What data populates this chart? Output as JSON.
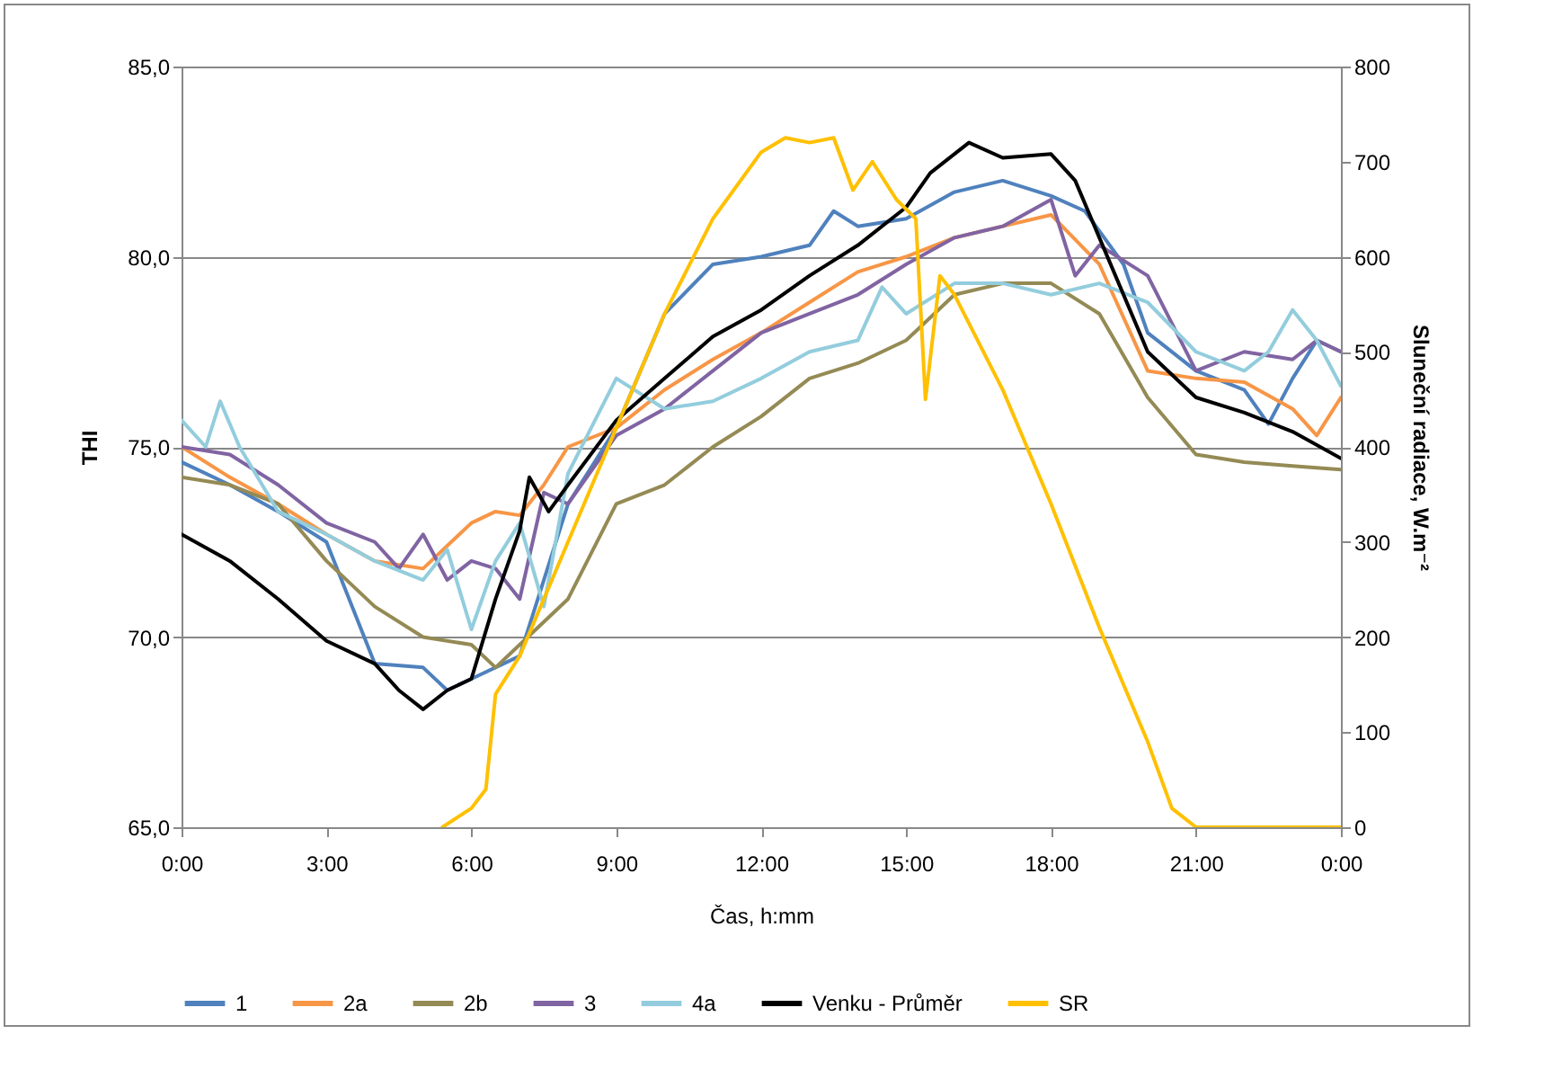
{
  "chart_data": {
    "type": "line",
    "xlabel": "Čas, h:mm",
    "ylabel": "THI",
    "y2label": "Sluneční radiace, W.m⁻²",
    "xlim": [
      0,
      24
    ],
    "xticks": [
      {
        "value": 0,
        "label": "0:00"
      },
      {
        "value": 3,
        "label": "3:00"
      },
      {
        "value": 6,
        "label": "6:00"
      },
      {
        "value": 9,
        "label": "9:00"
      },
      {
        "value": 12,
        "label": "12:00"
      },
      {
        "value": 15,
        "label": "15:00"
      },
      {
        "value": 18,
        "label": "18:00"
      },
      {
        "value": 21,
        "label": "21:00"
      },
      {
        "value": 24,
        "label": "0:00"
      }
    ],
    "ylim": [
      65,
      85
    ],
    "yticks": [
      {
        "value": 65,
        "label": "65,0"
      },
      {
        "value": 70,
        "label": "70,0"
      },
      {
        "value": 75,
        "label": "75,0"
      },
      {
        "value": 80,
        "label": "80,0"
      },
      {
        "value": 85,
        "label": "85,0"
      }
    ],
    "y2lim": [
      0,
      800
    ],
    "y2ticks": [
      0,
      100,
      200,
      300,
      400,
      500,
      600,
      700,
      800
    ],
    "grid": "y",
    "legend": "bottom",
    "marker": "none",
    "line_style": "solid",
    "series": [
      {
        "name": "1",
        "color": "#4f81bd",
        "x": [
          0,
          1,
          2,
          3,
          4,
          5,
          5.5,
          6,
          7,
          7.5,
          8,
          9,
          10,
          11,
          12,
          13,
          13.5,
          14,
          15,
          16,
          17,
          18,
          18.7,
          19.5,
          20,
          21,
          22,
          22.5,
          23,
          23.5,
          24
        ],
        "values": [
          74.6,
          74.0,
          73.3,
          72.5,
          69.3,
          69.2,
          68.6,
          68.9,
          69.5,
          71.5,
          73.5,
          75.5,
          78.5,
          79.8,
          80.0,
          80.3,
          81.2,
          80.8,
          81.0,
          81.7,
          82.0,
          81.6,
          81.2,
          79.8,
          78.0,
          77.0,
          76.5,
          75.6,
          76.8,
          77.8,
          77.5
        ]
      },
      {
        "name": "2a",
        "color": "#f79646",
        "x": [
          0,
          1,
          2,
          3,
          4,
          5,
          6,
          6.5,
          7,
          7.5,
          8,
          9,
          10,
          11,
          12,
          13,
          14,
          15,
          16,
          17,
          18,
          19,
          20,
          21,
          22,
          23,
          23.5,
          24
        ],
        "values": [
          75.0,
          74.2,
          73.5,
          72.7,
          72.0,
          71.8,
          73.0,
          73.3,
          73.2,
          74.0,
          75.0,
          75.5,
          76.5,
          77.3,
          78.0,
          78.8,
          79.6,
          80.0,
          80.5,
          80.8,
          81.1,
          79.8,
          77.0,
          76.8,
          76.7,
          76.0,
          75.3,
          76.3
        ]
      },
      {
        "name": "2b",
        "color": "#948a54",
        "x": [
          0,
          1,
          2,
          3,
          4,
          5,
          6,
          6.5,
          7,
          8,
          9,
          10,
          11,
          12,
          13,
          14,
          15,
          16,
          17,
          18,
          19,
          20,
          21,
          22,
          23,
          24
        ],
        "values": [
          74.2,
          74.0,
          73.5,
          72.0,
          70.8,
          70.0,
          69.8,
          69.2,
          69.8,
          71.0,
          73.5,
          74.0,
          75.0,
          75.8,
          76.8,
          77.2,
          77.8,
          79.0,
          79.3,
          79.3,
          78.5,
          76.3,
          74.8,
          74.6,
          74.5,
          74.4
        ]
      },
      {
        "name": "3",
        "color": "#8064a2",
        "x": [
          0,
          1,
          2,
          3,
          4,
          4.5,
          5,
          5.5,
          6,
          6.5,
          7,
          7.5,
          8,
          9,
          10,
          11,
          12,
          13,
          14,
          15,
          16,
          17,
          18,
          18.5,
          19,
          20,
          21,
          22,
          23,
          23.5,
          24
        ],
        "values": [
          75.0,
          74.8,
          74.0,
          73.0,
          72.5,
          71.8,
          72.7,
          71.5,
          72.0,
          71.8,
          71.0,
          73.8,
          73.5,
          75.3,
          76.0,
          77.0,
          78.0,
          78.5,
          79.0,
          79.8,
          80.5,
          80.8,
          81.5,
          79.5,
          80.3,
          79.5,
          77.0,
          77.5,
          77.3,
          77.8,
          77.5
        ]
      },
      {
        "name": "4a",
        "color": "#93cddd",
        "x": [
          0,
          0.5,
          0.8,
          1.2,
          2,
          3,
          4,
          5,
          5.5,
          6,
          6.5,
          7,
          7.5,
          8,
          9,
          10,
          11,
          12,
          13,
          14,
          14.5,
          15,
          16,
          17,
          18,
          19,
          20,
          21,
          22,
          22.5,
          23,
          23.5,
          24
        ],
        "values": [
          75.7,
          75.0,
          76.2,
          75.0,
          73.3,
          72.7,
          72.0,
          71.5,
          72.3,
          70.2,
          72.0,
          73.0,
          70.8,
          74.3,
          76.8,
          76.0,
          76.2,
          76.8,
          77.5,
          77.8,
          79.2,
          78.5,
          79.3,
          79.3,
          79.0,
          79.3,
          78.8,
          77.5,
          77.0,
          77.5,
          78.6,
          77.8,
          76.6
        ]
      },
      {
        "name": "Venku - Průměr",
        "color": "#000000",
        "x": [
          0,
          1,
          2,
          3,
          4,
          4.5,
          5,
          5.5,
          6,
          6.5,
          7,
          7.2,
          7.6,
          8,
          9,
          10,
          11,
          12,
          13,
          14,
          15,
          15.5,
          16.3,
          17,
          18,
          18.5,
          19,
          20,
          21,
          22,
          23,
          24
        ],
        "values": [
          72.7,
          72.0,
          71.0,
          69.9,
          69.3,
          68.6,
          68.1,
          68.6,
          68.9,
          71.0,
          72.8,
          74.2,
          73.3,
          74.0,
          75.7,
          76.8,
          77.9,
          78.6,
          79.5,
          80.3,
          81.3,
          82.2,
          83.0,
          82.6,
          82.7,
          82.0,
          80.5,
          77.5,
          76.3,
          75.9,
          75.4,
          74.7
        ]
      },
      {
        "name": "SR",
        "color": "#ffc000",
        "axis": "y2",
        "x": [
          5.4,
          6,
          6.3,
          6.5,
          7,
          8,
          9,
          10,
          11,
          12,
          12.5,
          13,
          13.5,
          13.9,
          14.3,
          14.8,
          15.2,
          15.4,
          15.7,
          16,
          17,
          18,
          19,
          20,
          20.5,
          21,
          24
        ],
        "values": [
          0,
          20,
          40,
          140,
          180,
          300,
          420,
          540,
          640,
          710,
          725,
          720,
          725,
          670,
          700,
          660,
          640,
          450,
          580,
          560,
          460,
          340,
          210,
          90,
          20,
          0,
          0
        ]
      }
    ]
  }
}
